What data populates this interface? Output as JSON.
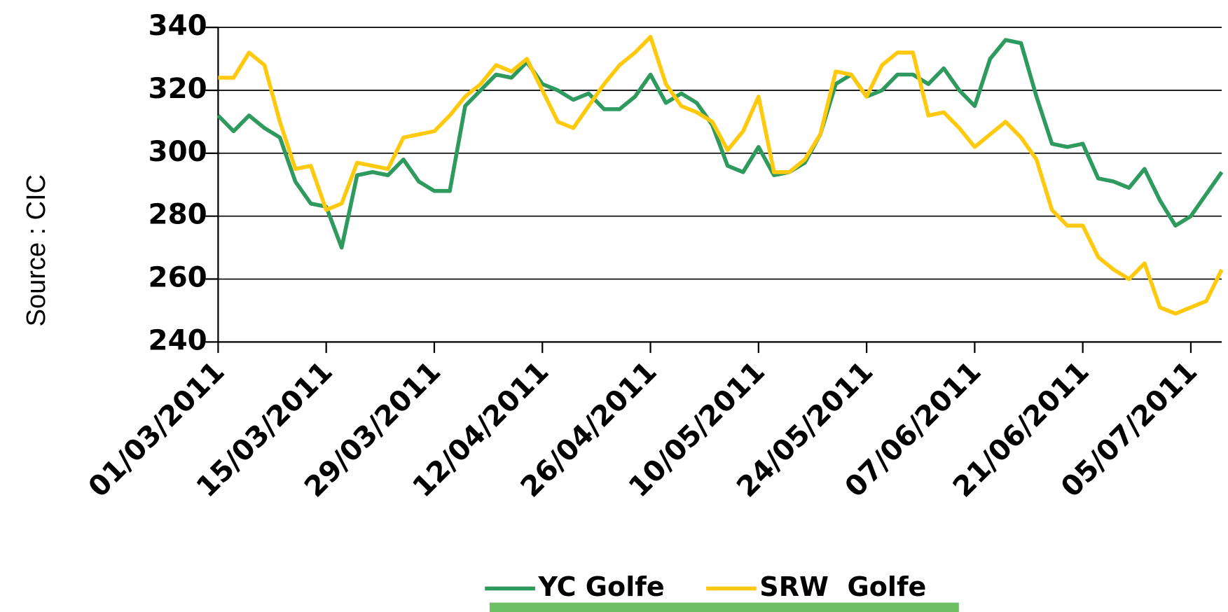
{
  "chart_data": {
    "type": "line",
    "y_label": "Source : CIC",
    "x": [
      "01/03/2011",
      "03/03/2011",
      "05/03/2011",
      "07/03/2011",
      "09/03/2011",
      "11/03/2011",
      "13/03/2011",
      "15/03/2011",
      "17/03/2011",
      "19/03/2011",
      "21/03/2011",
      "23/03/2011",
      "25/03/2011",
      "27/03/2011",
      "29/03/2011",
      "31/03/2011",
      "02/04/2011",
      "04/04/2011",
      "06/04/2011",
      "08/04/2011",
      "10/04/2011",
      "12/04/2011",
      "14/04/2011",
      "16/04/2011",
      "18/04/2011",
      "20/04/2011",
      "22/04/2011",
      "24/04/2011",
      "26/04/2011",
      "28/04/2011",
      "30/04/2011",
      "02/05/2011",
      "04/05/2011",
      "06/05/2011",
      "08/05/2011",
      "10/05/2011",
      "12/05/2011",
      "14/05/2011",
      "16/05/2011",
      "18/05/2011",
      "20/05/2011",
      "22/05/2011",
      "24/05/2011",
      "26/05/2011",
      "28/05/2011",
      "30/05/2011",
      "01/06/2011",
      "03/06/2011",
      "05/06/2011",
      "07/06/2011",
      "09/06/2011",
      "11/06/2011",
      "13/06/2011",
      "15/06/2011",
      "17/06/2011",
      "19/06/2011",
      "21/06/2011",
      "23/06/2011",
      "25/06/2011",
      "27/06/2011",
      "29/06/2011",
      "01/07/2011",
      "03/07/2011",
      "05/07/2011",
      "07/07/2011",
      "09/07/2011"
    ],
    "series": [
      {
        "name": "YC Golfe",
        "color": "#2e9a5e",
        "values": [
          312,
          307,
          312,
          308,
          305,
          291,
          284,
          283,
          270,
          293,
          294,
          293,
          298,
          291,
          288,
          288,
          315,
          320,
          325,
          324,
          329,
          322,
          320,
          317,
          319,
          314,
          314,
          318,
          325,
          316,
          319,
          316,
          309,
          296,
          294,
          302,
          293,
          294,
          297,
          306,
          322,
          325,
          318,
          320,
          325,
          325,
          322,
          327,
          320,
          315,
          330,
          336,
          335,
          318,
          303,
          302,
          303,
          292,
          291,
          289,
          295,
          285,
          277,
          280,
          287,
          294
        ]
      },
      {
        "name": "SRW  Golfe",
        "color": "#ffc90e",
        "values": [
          324,
          324,
          332,
          328,
          310,
          295,
          296,
          282,
          284,
          297,
          296,
          295,
          305,
          306,
          307,
          312,
          318,
          322,
          328,
          326,
          330,
          320,
          310,
          308,
          315,
          322,
          328,
          332,
          337,
          322,
          315,
          313,
          310,
          301,
          307,
          318,
          294,
          294,
          298,
          306,
          326,
          325,
          318,
          328,
          332,
          332,
          312,
          313,
          308,
          302,
          306,
          310,
          305,
          298,
          282,
          277,
          277,
          267,
          263,
          260,
          265,
          251,
          249,
          251,
          253,
          263
        ]
      }
    ],
    "xlim": [
      "01/03/2011",
      "09/07/2011"
    ],
    "xticks": [
      "01/03/2011",
      "15/03/2011",
      "29/03/2011",
      "12/04/2011",
      "26/04/2011",
      "10/05/2011",
      "24/05/2011",
      "07/06/2011",
      "21/06/2011",
      "05/07/2011"
    ],
    "ylim": [
      240,
      340
    ],
    "yticks": [
      240,
      260,
      280,
      300,
      320,
      340
    ],
    "grid": true,
    "legend": "bottom"
  }
}
